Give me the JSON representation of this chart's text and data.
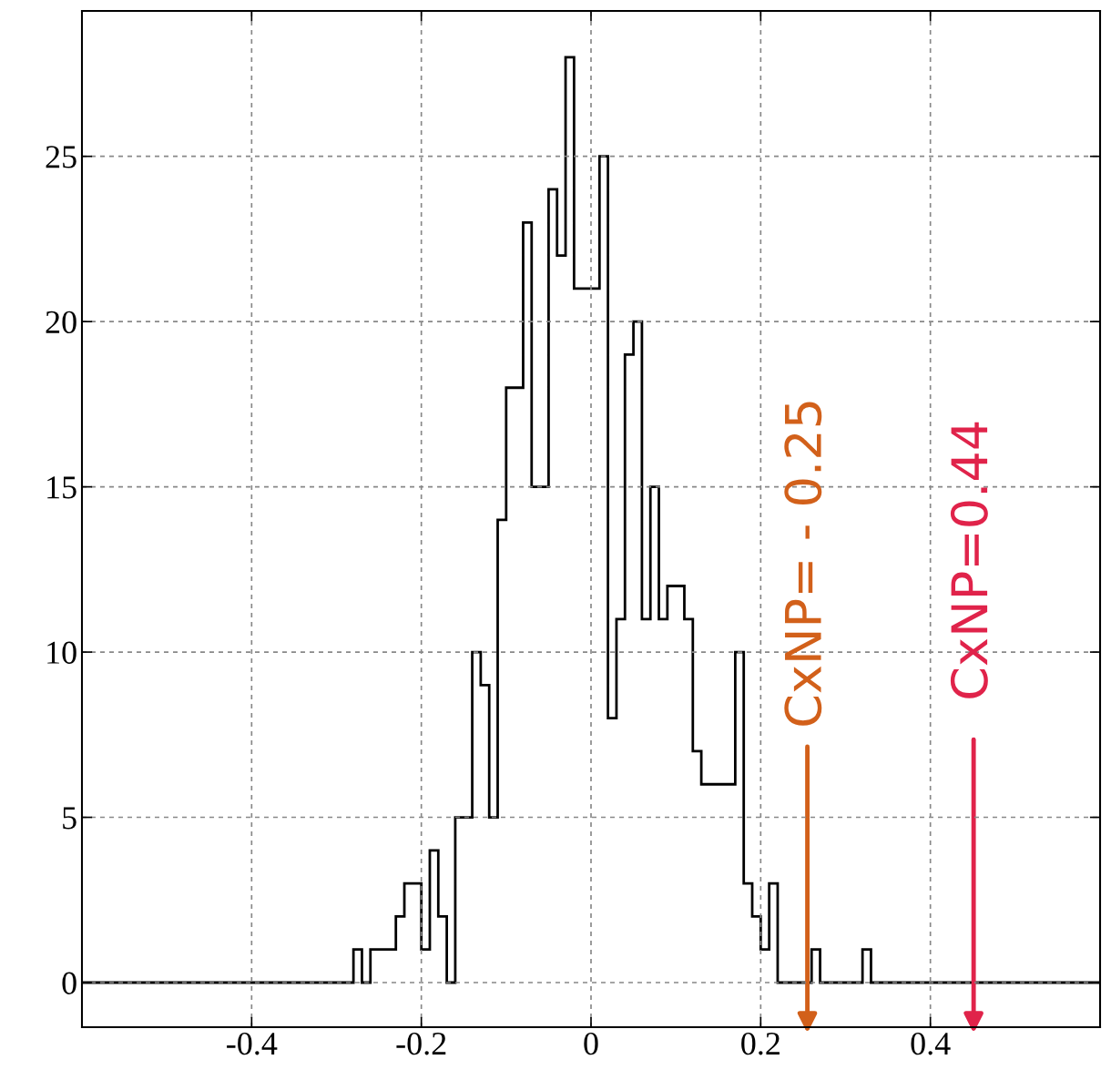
{
  "chart_data": {
    "type": "histogram",
    "color": "#000000",
    "bins": [
      -0.6,
      -0.28,
      -0.27,
      -0.26,
      -0.25,
      -0.24,
      -0.23,
      -0.22,
      -0.21,
      -0.2,
      -0.19,
      -0.18,
      -0.17,
      -0.16,
      -0.15,
      -0.14,
      -0.13,
      -0.12,
      -0.11,
      -0.1,
      -0.09,
      -0.08,
      -0.07,
      -0.06,
      -0.05,
      -0.04,
      -0.03,
      -0.02,
      -0.01,
      0,
      0.01,
      0.02,
      0.03,
      0.04,
      0.05,
      0.06,
      0.07,
      0.08,
      0.09,
      0.1,
      0.11,
      0.12,
      0.13,
      0.14,
      0.15,
      0.16,
      0.17,
      0.18,
      0.19,
      0.2,
      0.21,
      0.22,
      0.23,
      0.24,
      0.25,
      0.26,
      0.27,
      0.28,
      0.29,
      0.3,
      0.31,
      0.32,
      0.33,
      0.6
    ],
    "values": [
      0,
      1,
      0,
      1,
      1,
      1,
      2,
      3,
      3,
      1,
      4,
      2,
      0,
      5,
      5,
      10,
      9,
      5,
      14,
      18,
      18,
      23,
      15,
      15,
      24,
      22,
      28,
      21,
      21,
      21,
      25,
      8,
      11,
      19,
      20,
      11,
      15,
      11,
      12,
      12,
      11,
      7,
      6,
      6,
      6,
      6,
      10,
      3,
      2,
      1,
      3,
      0,
      0,
      0,
      0,
      1,
      0,
      0,
      0,
      0,
      0,
      1,
      0
    ],
    "xlim": [
      -0.6,
      0.6
    ],
    "ylim": [
      -1.35,
      29.4
    ],
    "xticks": [
      -0.4,
      -0.2,
      0,
      0.2,
      0.4
    ],
    "yticks": [
      0,
      5,
      10,
      15,
      20,
      25
    ],
    "grid": true,
    "annotations": [
      "CxNP= - 0.25",
      "CxNP=0.44"
    ]
  }
}
